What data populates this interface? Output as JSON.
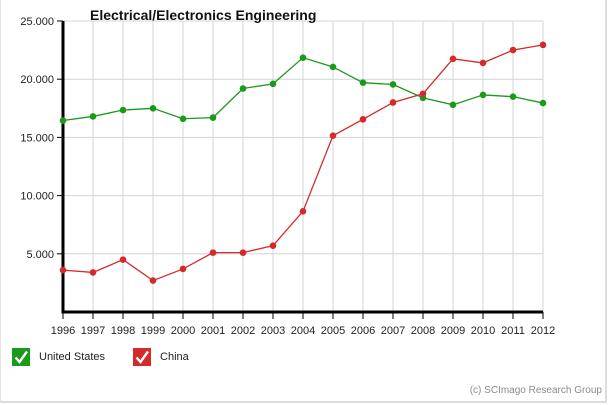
{
  "chart_data": {
    "type": "line",
    "title": "Electrical/Electronics Engineering",
    "xlabel": "",
    "ylabel": "",
    "x": [
      "1996",
      "1997",
      "1998",
      "1999",
      "2000",
      "2001",
      "2002",
      "2003",
      "2004",
      "2005",
      "2006",
      "2007",
      "2008",
      "2009",
      "2010",
      "2011",
      "2012"
    ],
    "ylim": [
      0,
      25000
    ],
    "yticks": [
      5000,
      10000,
      15000,
      20000,
      25000
    ],
    "ytick_labels": [
      "5.000",
      "10.000",
      "15.000",
      "20.000",
      "25.000"
    ],
    "grid": true,
    "legend_position": "bottom-left",
    "series": [
      {
        "name": "United States",
        "color": "#1a9a1a",
        "values": [
          16450,
          16800,
          17350,
          17500,
          16600,
          16700,
          19200,
          19600,
          21850,
          21050,
          19700,
          19550,
          18400,
          17800,
          18650,
          18500,
          17950
        ]
      },
      {
        "name": "China",
        "color": "#d42a2a",
        "values": [
          3600,
          3400,
          4500,
          2700,
          3700,
          5100,
          5100,
          5700,
          8650,
          15150,
          16550,
          18000,
          18750,
          21750,
          21400,
          22500,
          22950
        ]
      }
    ]
  },
  "legend": {
    "items": [
      {
        "label": "United States",
        "color": "#1a9a1a",
        "checked": true
      },
      {
        "label": "China",
        "color": "#d42a2a",
        "checked": true
      }
    ]
  },
  "credit": "(c) SCImago Research Group"
}
